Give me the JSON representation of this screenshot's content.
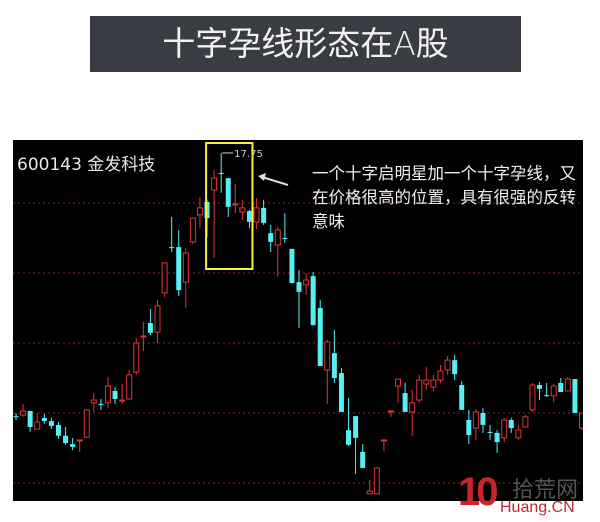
{
  "header": {
    "title": "十字孕线形态在A股"
  },
  "stock": {
    "label": "600143 金发科技"
  },
  "annotation": {
    "text": "一个十字启明星加一个十字孕线，又在价格很高的位置，具有很强的反转意味"
  },
  "watermark": {
    "number": "10",
    "site_cn": "拾荒网",
    "site_en": "Huang.CN"
  },
  "colors": {
    "up": "#e0343a",
    "down": "#54f0f4",
    "background": "#000000",
    "grid": "#8a1f1f",
    "highlight_box": "#f4f040",
    "header_bg": "#3a3c44"
  },
  "chart_data": {
    "type": "candlestick",
    "title": "600143 金发科技",
    "xlabel": "",
    "ylabel": "",
    "grid": true,
    "ylim": [
      7.85,
      18.1
    ],
    "max_label": "17.75",
    "highlight": {
      "from_index": 28,
      "to_index": 33
    },
    "ohlc_fields": [
      "open",
      "high",
      "low",
      "close"
    ],
    "candles": [
      [
        10.23,
        10.32,
        10.12,
        10.2
      ],
      [
        10.26,
        10.58,
        10.21,
        10.38
      ],
      [
        10.38,
        10.38,
        9.78,
        9.92
      ],
      [
        9.86,
        10.32,
        9.86,
        10.06
      ],
      [
        10.18,
        10.29,
        10.01,
        10.09
      ],
      [
        10.09,
        10.18,
        9.86,
        9.95
      ],
      [
        9.98,
        10.06,
        9.58,
        9.67
      ],
      [
        9.67,
        9.92,
        9.41,
        9.46
      ],
      [
        9.43,
        9.6,
        9.26,
        9.35
      ],
      [
        9.52,
        9.55,
        9.21,
        9.55
      ],
      [
        9.63,
        10.41,
        9.63,
        10.41
      ],
      [
        10.61,
        10.89,
        10.35,
        10.69
      ],
      [
        10.58,
        10.72,
        10.41,
        10.55
      ],
      [
        10.61,
        11.35,
        10.46,
        11.09
      ],
      [
        10.95,
        11.06,
        10.58,
        10.72
      ],
      [
        10.66,
        11.15,
        10.58,
        10.69
      ],
      [
        10.72,
        11.55,
        10.72,
        11.41
      ],
      [
        11.49,
        12.46,
        11.41,
        12.32
      ],
      [
        12.49,
        12.92,
        12.09,
        12.52
      ],
      [
        12.89,
        13.29,
        12.55,
        12.61
      ],
      [
        12.63,
        13.55,
        12.32,
        13.38
      ],
      [
        13.75,
        14.63,
        13.63,
        14.61
      ],
      [
        15.06,
        15.92,
        14.92,
        15.03
      ],
      [
        15.06,
        15.55,
        13.66,
        13.83
      ],
      [
        14.06,
        15.03,
        13.32,
        14.89
      ],
      [
        15.21,
        15.89,
        15.15,
        15.89
      ],
      [
        15.98,
        16.49,
        15.61,
        16.18
      ],
      [
        16.35,
        16.41,
        15.35,
        15.89
      ],
      [
        16.69,
        17.26,
        14.75,
        17.03
      ],
      [
        17.18,
        17.75,
        16.61,
        17.15
      ],
      [
        17.03,
        17.03,
        15.92,
        16.21
      ],
      [
        16.26,
        16.86,
        16.03,
        16.29
      ],
      [
        16.06,
        16.41,
        15.83,
        16.18
      ],
      [
        16.09,
        16.12,
        15.61,
        15.78
      ],
      [
        15.78,
        16.46,
        15.58,
        16.18
      ],
      [
        16.18,
        16.41,
        15.69,
        15.75
      ],
      [
        15.46,
        15.69,
        14.92,
        15.21
      ],
      [
        15.12,
        15.63,
        14.21,
        15.55
      ],
      [
        15.32,
        16.03,
        15.18,
        15.29
      ],
      [
        15.01,
        15.01,
        14.03,
        14.03
      ],
      [
        14.06,
        14.41,
        12.75,
        13.78
      ],
      [
        13.98,
        14.32,
        13.69,
        14.12
      ],
      [
        14.23,
        14.35,
        12.83,
        12.83
      ],
      [
        13.32,
        13.55,
        11.66,
        11.66
      ],
      [
        11.55,
        12.41,
        10.58,
        12.35
      ],
      [
        12.03,
        12.69,
        11.18,
        11.32
      ],
      [
        11.46,
        11.61,
        10.35,
        10.35
      ],
      [
        9.83,
        10.75,
        9.38,
        9.41
      ],
      [
        10.23,
        10.23,
        8.58,
        9.61
      ],
      [
        9.21,
        9.43,
        8.75,
        8.75
      ],
      [
        8.01,
        8.41,
        8.01,
        8.09
      ],
      [
        8.01,
        8.75,
        8.01,
        8.75
      ],
      [
        9.52,
        9.55,
        9.23,
        9.55
      ],
      [
        10.35,
        10.38,
        10.21,
        10.38
      ],
      [
        11.09,
        11.29,
        10.61,
        11.29
      ],
      [
        10.89,
        11.18,
        10.35,
        10.35
      ],
      [
        10.35,
        10.98,
        9.66,
        10.61
      ],
      [
        10.69,
        11.41,
        10.61,
        11.26
      ],
      [
        11.15,
        11.63,
        10.98,
        11.26
      ],
      [
        11.06,
        11.41,
        10.95,
        11.26
      ],
      [
        11.26,
        11.69,
        11.18,
        11.52
      ],
      [
        11.55,
        11.95,
        11.41,
        11.83
      ],
      [
        11.83,
        11.98,
        11.26,
        11.43
      ],
      [
        11.12,
        11.23,
        10.41,
        10.41
      ],
      [
        10.12,
        10.41,
        9.43,
        9.69
      ],
      [
        9.89,
        10.43,
        9.55,
        10.35
      ],
      [
        10.32,
        10.46,
        9.75,
        9.98
      ],
      [
        9.78,
        9.98,
        9.55,
        9.75
      ],
      [
        9.75,
        9.83,
        9.18,
        9.49
      ],
      [
        9.61,
        10.18,
        9.49,
        10.12
      ],
      [
        10.12,
        10.18,
        9.75,
        9.89
      ],
      [
        9.61,
        9.98,
        9.55,
        9.83
      ],
      [
        9.92,
        10.26,
        9.92,
        10.21
      ],
      [
        10.41,
        11.18,
        10.35,
        11.12
      ],
      [
        11.12,
        11.21,
        10.69,
        11.01
      ],
      [
        10.83,
        11.18,
        10.78,
        10.81
      ],
      [
        10.81,
        11.15,
        10.63,
        11.09
      ],
      [
        11.18,
        11.32,
        10.92,
        10.92
      ],
      [
        10.95,
        11.35,
        10.95,
        11.29
      ],
      [
        11.29,
        11.29,
        10.32,
        10.32
      ],
      [
        9.89,
        10.32,
        9.83,
        10.32
      ]
    ]
  }
}
